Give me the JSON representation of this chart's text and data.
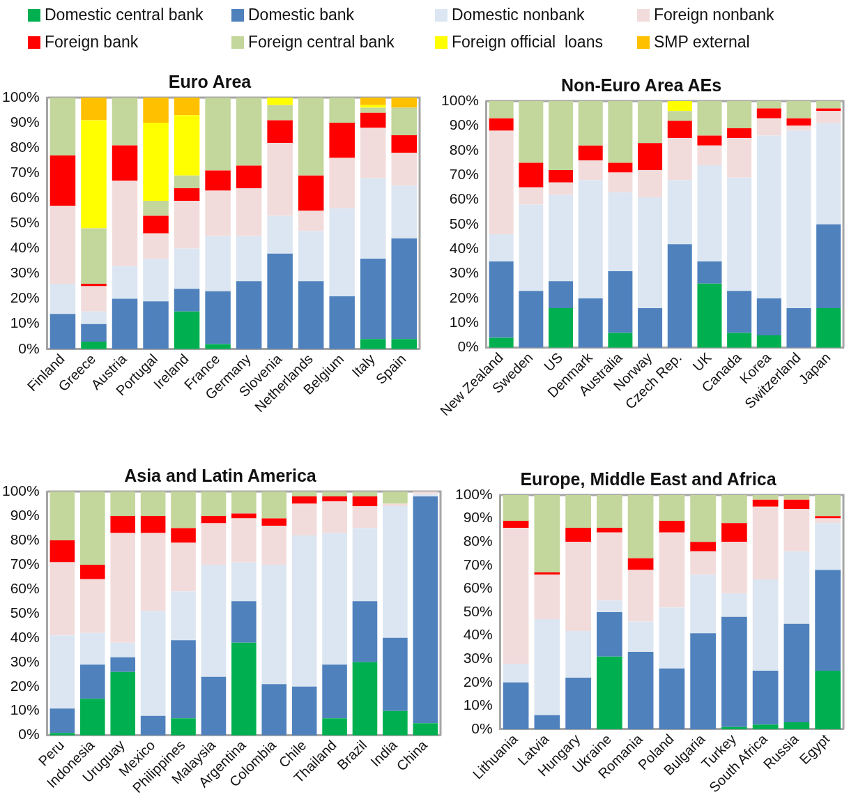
{
  "chart_data": [
    {
      "type": "bar",
      "stacked": true,
      "title": "Euro Area",
      "legend": "top",
      "grid": false,
      "categories": [
        "Finland",
        "Greece",
        "Austria",
        "Portugal",
        "Ireland",
        "France",
        "Germany",
        "Slovenia",
        "Netherlands",
        "Belgium",
        "Italy",
        "Spain"
      ],
      "ylim": [
        0,
        100
      ],
      "yticks": [
        {
          "value": 0,
          "label": "0%"
        },
        {
          "value": 10,
          "label": "10%"
        },
        {
          "value": 20,
          "label": "20%"
        },
        {
          "value": 30,
          "label": "30%"
        },
        {
          "value": 40,
          "label": "40%"
        },
        {
          "value": 50,
          "label": "50%"
        },
        {
          "value": 60,
          "label": "60%"
        },
        {
          "value": 70,
          "label": "70%"
        },
        {
          "value": 80,
          "label": "80%"
        },
        {
          "value": 90,
          "label": "90%"
        },
        {
          "value": 100,
          "label": "100%"
        }
      ],
      "series": [
        {
          "name": "Domestic central bank",
          "color": "#00b050",
          "values": [
            0,
            3,
            0,
            0,
            15,
            2,
            0,
            0,
            0,
            0,
            4,
            4
          ]
        },
        {
          "name": "Domestic bank",
          "color": "#4f81bd",
          "values": [
            14,
            7,
            20,
            19,
            9,
            21,
            27,
            38,
            27,
            21,
            32,
            40
          ]
        },
        {
          "name": "Domestic nonbank",
          "color": "#dce6f2",
          "values": [
            12,
            5,
            13,
            17,
            16,
            22,
            18,
            15,
            20,
            35,
            32,
            21
          ]
        },
        {
          "name": "Foreign nonbank",
          "color": "#f2dcdb",
          "values": [
            31,
            10,
            34,
            10,
            19,
            18,
            19,
            29,
            8,
            20,
            20,
            13
          ]
        },
        {
          "name": "Foreign bank",
          "color": "#ff0000",
          "values": [
            20,
            1,
            14,
            7,
            5,
            8,
            9,
            9,
            14,
            14,
            6,
            7
          ]
        },
        {
          "name": "Foreign central bank",
          "color": "#c3d69b",
          "values": [
            23,
            22,
            19,
            6,
            5,
            29,
            27,
            6,
            31,
            10,
            2,
            11
          ]
        },
        {
          "name": "Foreign official  loans",
          "color": "#ffff00",
          "values": [
            0,
            43,
            0,
            31,
            24,
            0,
            0,
            3,
            0,
            0,
            1,
            0
          ]
        },
        {
          "name": "SMP external",
          "color": "#ffc000",
          "values": [
            0,
            9,
            0,
            10,
            7,
            0,
            0,
            0,
            0,
            0,
            3,
            4
          ]
        }
      ]
    },
    {
      "type": "bar",
      "stacked": true,
      "title": "Non-Euro Area AEs",
      "grid": false,
      "categories": [
        "New Zealand",
        "Sweden",
        "US",
        "Denmark",
        "Australia",
        "Norway",
        "Czech Rep.",
        "UK",
        "Canada",
        "Korea",
        "Switzerland",
        "Japan"
      ],
      "ylim": [
        0,
        100
      ],
      "yticks": [
        {
          "value": 0,
          "label": "0%"
        },
        {
          "value": 10,
          "label": "10%"
        },
        {
          "value": 20,
          "label": "20%"
        },
        {
          "value": 30,
          "label": "30%"
        },
        {
          "value": 40,
          "label": "40%"
        },
        {
          "value": 50,
          "label": "50%"
        },
        {
          "value": 60,
          "label": "60%"
        },
        {
          "value": 70,
          "label": "70%"
        },
        {
          "value": 80,
          "label": "80%"
        },
        {
          "value": 90,
          "label": "90%"
        },
        {
          "value": 100,
          "label": "100%"
        }
      ],
      "series": [
        {
          "color": "#00b050",
          "values": [
            4,
            0,
            16,
            0,
            6,
            0,
            0,
            26,
            6,
            5,
            0,
            16
          ]
        },
        {
          "color": "#4f81bd",
          "values": [
            31,
            23,
            11,
            20,
            25,
            16,
            42,
            9,
            17,
            15,
            16,
            34
          ]
        },
        {
          "color": "#dce6f2",
          "values": [
            11,
            35,
            35,
            48,
            32,
            45,
            26,
            39,
            46,
            66,
            72,
            41
          ]
        },
        {
          "color": "#f2dcdb",
          "values": [
            42,
            7,
            5,
            8,
            8,
            11,
            17,
            8,
            16,
            7,
            2,
            5
          ]
        },
        {
          "color": "#ff0000",
          "values": [
            5,
            10,
            5,
            6,
            4,
            11,
            7,
            4,
            4,
            4,
            3,
            1
          ]
        },
        {
          "color": "#c3d69b",
          "values": [
            7,
            25,
            28,
            18,
            25,
            17,
            4,
            14,
            11,
            3,
            7,
            3
          ]
        },
        {
          "color": "#ffff00",
          "values": [
            0,
            0,
            0,
            0,
            0,
            0,
            4,
            0,
            0,
            0,
            0,
            0
          ]
        }
      ]
    },
    {
      "type": "bar",
      "stacked": true,
      "title": "Asia and Latin America",
      "grid": false,
      "categories": [
        "Peru",
        "Indonesia",
        "Uruguay",
        "Mexico",
        "Philippines",
        "Malaysia",
        "Argentina",
        "Colombia",
        "Chile",
        "Thailand",
        "Brazil",
        "India",
        "China"
      ],
      "ylim": [
        0,
        100
      ],
      "yticks": [
        {
          "value": 0,
          "label": "0%"
        },
        {
          "value": 10,
          "label": "10%"
        },
        {
          "value": 20,
          "label": "20%"
        },
        {
          "value": 30,
          "label": "30%"
        },
        {
          "value": 40,
          "label": "40%"
        },
        {
          "value": 50,
          "label": "50%"
        },
        {
          "value": 60,
          "label": "60%"
        },
        {
          "value": 70,
          "label": "70%"
        },
        {
          "value": 80,
          "label": "80%"
        },
        {
          "value": 90,
          "label": "90%"
        },
        {
          "value": 100,
          "label": "100%"
        }
      ],
      "series": [
        {
          "color": "#00b050",
          "values": [
            1,
            15,
            26,
            0,
            7,
            0,
            38,
            0,
            0,
            7,
            30,
            10,
            5
          ]
        },
        {
          "color": "#4f81bd",
          "values": [
            10,
            14,
            6,
            8,
            32,
            24,
            17,
            21,
            20,
            22,
            25,
            30,
            93
          ]
        },
        {
          "color": "#dce6f2",
          "values": [
            30,
            13,
            6,
            43,
            20,
            46,
            16,
            49,
            62,
            54,
            30,
            54,
            1
          ]
        },
        {
          "color": "#f2dcdb",
          "values": [
            30,
            22,
            45,
            32,
            20,
            17,
            18,
            16,
            13,
            13,
            9,
            1,
            1
          ]
        },
        {
          "color": "#ff0000",
          "values": [
            9,
            6,
            7,
            7,
            6,
            3,
            2,
            3,
            3,
            2,
            4,
            0,
            0
          ]
        },
        {
          "color": "#c3d69b",
          "values": [
            20,
            30,
            10,
            10,
            15,
            10,
            9,
            11,
            2,
            2,
            2,
            5,
            0
          ]
        }
      ]
    },
    {
      "type": "bar",
      "stacked": true,
      "title": "Europe, Middle East and Africa",
      "grid": false,
      "categories": [
        "Lithuania",
        "Latvia",
        "Hungary",
        "Ukraine",
        "Romania",
        "Poland",
        "Bulgaria",
        "Turkey",
        "South Africa",
        "Russia",
        "Egypt"
      ],
      "ylim": [
        0,
        100
      ],
      "yticks": [
        {
          "value": 0,
          "label": "0%"
        },
        {
          "value": 10,
          "label": "10%"
        },
        {
          "value": 20,
          "label": "20%"
        },
        {
          "value": 30,
          "label": "30%"
        },
        {
          "value": 40,
          "label": "40%"
        },
        {
          "value": 50,
          "label": "50%"
        },
        {
          "value": 60,
          "label": "60%"
        },
        {
          "value": 70,
          "label": "70%"
        },
        {
          "value": 80,
          "label": "80%"
        },
        {
          "value": 90,
          "label": "90%"
        },
        {
          "value": 100,
          "label": "100%"
        }
      ],
      "series": [
        {
          "color": "#00b050",
          "values": [
            0,
            0,
            0,
            31,
            0,
            0,
            0,
            1,
            2,
            3,
            25
          ]
        },
        {
          "color": "#4f81bd",
          "values": [
            20,
            6,
            22,
            19,
            33,
            26,
            41,
            47,
            23,
            42,
            43
          ]
        },
        {
          "color": "#dce6f2",
          "values": [
            8,
            41,
            20,
            5,
            13,
            26,
            25,
            10,
            39,
            31,
            20
          ]
        },
        {
          "color": "#f2dcdb",
          "values": [
            58,
            19,
            38,
            29,
            22,
            32,
            10,
            22,
            31,
            18,
            2
          ]
        },
        {
          "color": "#ff0000",
          "values": [
            3,
            1,
            6,
            2,
            5,
            5,
            4,
            8,
            3,
            4,
            1
          ]
        },
        {
          "color": "#c3d69b",
          "values": [
            11,
            33,
            14,
            14,
            27,
            11,
            20,
            12,
            2,
            2,
            9
          ]
        }
      ]
    }
  ]
}
